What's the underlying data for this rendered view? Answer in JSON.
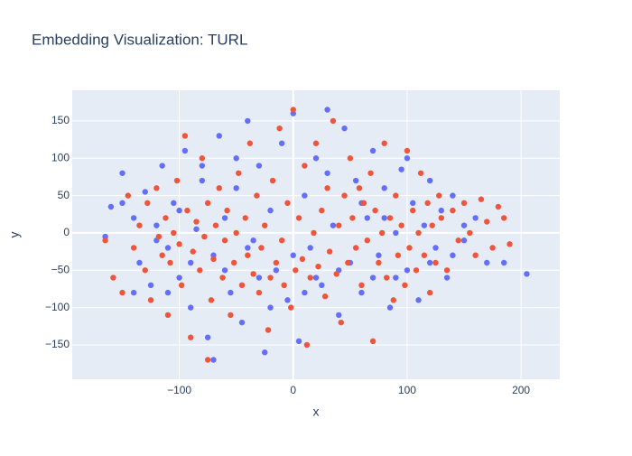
{
  "chart_data": {
    "type": "scatter",
    "title": "Embedding Visualization: TURL",
    "x_label": "x",
    "y_label": "y",
    "xlim": [
      -194,
      234
    ],
    "ylim": [
      -196,
      191
    ],
    "xticks": [
      {
        "value": -100,
        "label": "−100"
      },
      0,
      100,
      200
    ],
    "yticks": [
      {
        "value": -150,
        "label": "−150"
      },
      {
        "value": -100,
        "label": "−100"
      },
      {
        "value": -50,
        "label": "−50"
      },
      0,
      50,
      100,
      150
    ],
    "grid": true,
    "series": [
      {
        "color": "#636efa",
        "x": [
          -165,
          -160,
          -150,
          -140,
          -135,
          -130,
          -125,
          -120,
          -115,
          -110,
          -105,
          -100,
          -95,
          -90,
          -85,
          -80,
          -75,
          -70,
          -65,
          -60,
          -55,
          -50,
          -45,
          -40,
          -35,
          -30,
          -25,
          -20,
          -15,
          -10,
          -5,
          0,
          5,
          10,
          15,
          20,
          25,
          30,
          35,
          40,
          45,
          50,
          55,
          60,
          65,
          70,
          75,
          80,
          85,
          90,
          95,
          100,
          105,
          110,
          115,
          120,
          125,
          130,
          135,
          140,
          150,
          160,
          170,
          185,
          205,
          -140,
          -100,
          -60,
          -20,
          20,
          60,
          100,
          140,
          -120,
          -80,
          -40,
          0,
          40,
          80,
          120,
          -150,
          -90,
          -30,
          30,
          90,
          150,
          -110,
          -50,
          10,
          70,
          -70
        ],
        "y": [
          -5,
          35,
          80,
          20,
          -40,
          55,
          -70,
          10,
          90,
          -20,
          40,
          -60,
          110,
          -100,
          5,
          70,
          -140,
          -30,
          130,
          20,
          -80,
          60,
          -120,
          150,
          -10,
          90,
          -160,
          30,
          -50,
          120,
          -90,
          160,
          -145,
          50,
          -20,
          100,
          -70,
          165,
          10,
          -110,
          140,
          -40,
          70,
          -80,
          20,
          110,
          -30,
          60,
          -100,
          0,
          85,
          -50,
          40,
          -90,
          10,
          70,
          -20,
          30,
          -60,
          50,
          -10,
          20,
          -40,
          -40,
          -55,
          -80,
          30,
          -50,
          -100,
          -60,
          40,
          100,
          -30,
          -10,
          90,
          -20,
          -30,
          -50,
          20,
          -40,
          40,
          -40,
          -60,
          80,
          -60,
          10,
          -80,
          100,
          -80,
          -60,
          -170
        ]
      },
      {
        "color": "#ef553b",
        "x": [
          -165,
          -158,
          -150,
          -145,
          -140,
          -135,
          -130,
          -128,
          -125,
          -120,
          -118,
          -115,
          -112,
          -110,
          -108,
          -105,
          -102,
          -100,
          -98,
          -95,
          -93,
          -90,
          -88,
          -85,
          -82,
          -80,
          -78,
          -75,
          -72,
          -70,
          -68,
          -65,
          -62,
          -60,
          -58,
          -55,
          -52,
          -50,
          -48,
          -45,
          -42,
          -40,
          -38,
          -35,
          -32,
          -30,
          -28,
          -25,
          -22,
          -20,
          -18,
          -15,
          -12,
          -10,
          -8,
          -5,
          -2,
          0,
          2,
          5,
          8,
          10,
          12,
          15,
          18,
          20,
          22,
          25,
          28,
          30,
          32,
          35,
          38,
          40,
          42,
          45,
          48,
          50,
          52,
          55,
          58,
          60,
          62,
          65,
          68,
          70,
          72,
          75,
          78,
          80,
          82,
          85,
          88,
          90,
          92,
          95,
          98,
          100,
          102,
          105,
          108,
          110,
          112,
          115,
          118,
          120,
          122,
          125,
          128,
          130,
          135,
          140,
          145,
          150,
          155,
          160,
          165,
          170,
          175,
          180,
          185,
          190,
          -75
        ],
        "y": [
          -10,
          -60,
          -80,
          50,
          -20,
          10,
          -50,
          40,
          -90,
          60,
          -5,
          -30,
          20,
          -110,
          -40,
          0,
          70,
          -15,
          -70,
          130,
          30,
          -140,
          -25,
          15,
          -50,
          100,
          -5,
          40,
          -90,
          -35,
          10,
          60,
          -60,
          -10,
          30,
          -110,
          -40,
          0,
          80,
          -70,
          20,
          -30,
          120,
          -55,
          50,
          -80,
          -20,
          10,
          -130,
          -60,
          70,
          -40,
          140,
          -10,
          -70,
          40,
          -100,
          165,
          -50,
          20,
          -35,
          90,
          -150,
          -60,
          0,
          120,
          -45,
          30,
          -85,
          60,
          -25,
          150,
          -55,
          10,
          -120,
          50,
          -40,
          100,
          20,
          -20,
          60,
          -70,
          40,
          -10,
          80,
          -145,
          30,
          -40,
          0,
          120,
          -60,
          20,
          -90,
          50,
          -30,
          10,
          -70,
          110,
          -20,
          30,
          -50,
          0,
          80,
          -30,
          40,
          -80,
          10,
          -40,
          50,
          20,
          -50,
          30,
          -10,
          40,
          0,
          -30,
          45,
          15,
          -20,
          35,
          20,
          -15,
          -170
        ]
      }
    ]
  }
}
